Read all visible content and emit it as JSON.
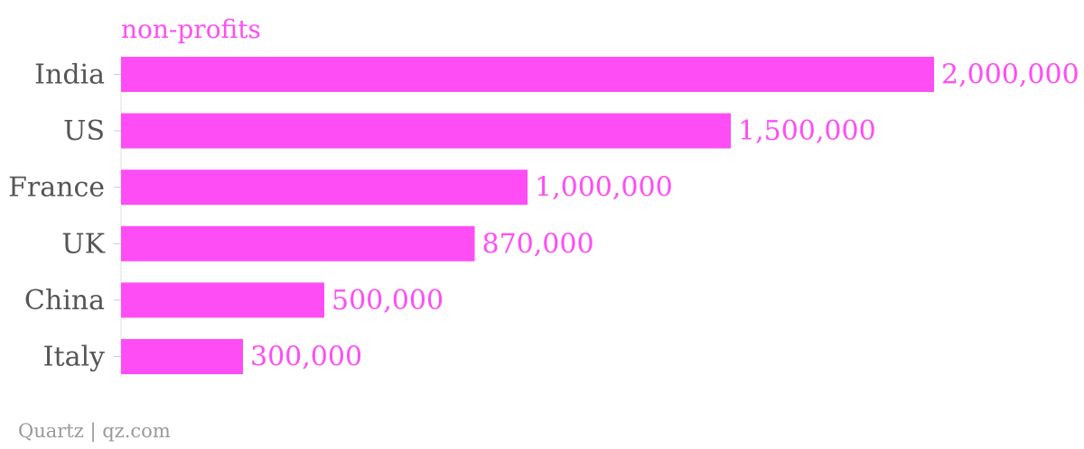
{
  "chart_data": {
    "type": "bar",
    "orientation": "horizontal",
    "categories": [
      "India",
      "US",
      "France",
      "UK",
      "China",
      "Italy"
    ],
    "series": [
      {
        "name": "non-profits",
        "values": [
          2000000,
          1500000,
          1000000,
          870000,
          500000,
          300000
        ]
      }
    ],
    "value_labels": [
      "2,000,000",
      "1,500,000",
      "1,000,000",
      "870,000",
      "500,000",
      "300,000"
    ],
    "xlim": [
      0,
      2000000
    ],
    "grid": false,
    "legend": "top-left"
  },
  "colors": {
    "bar": "#ff4df5",
    "label": "#555555",
    "value": "#ff4df5",
    "source": "#999999"
  },
  "source": "Quartz | qz.com"
}
